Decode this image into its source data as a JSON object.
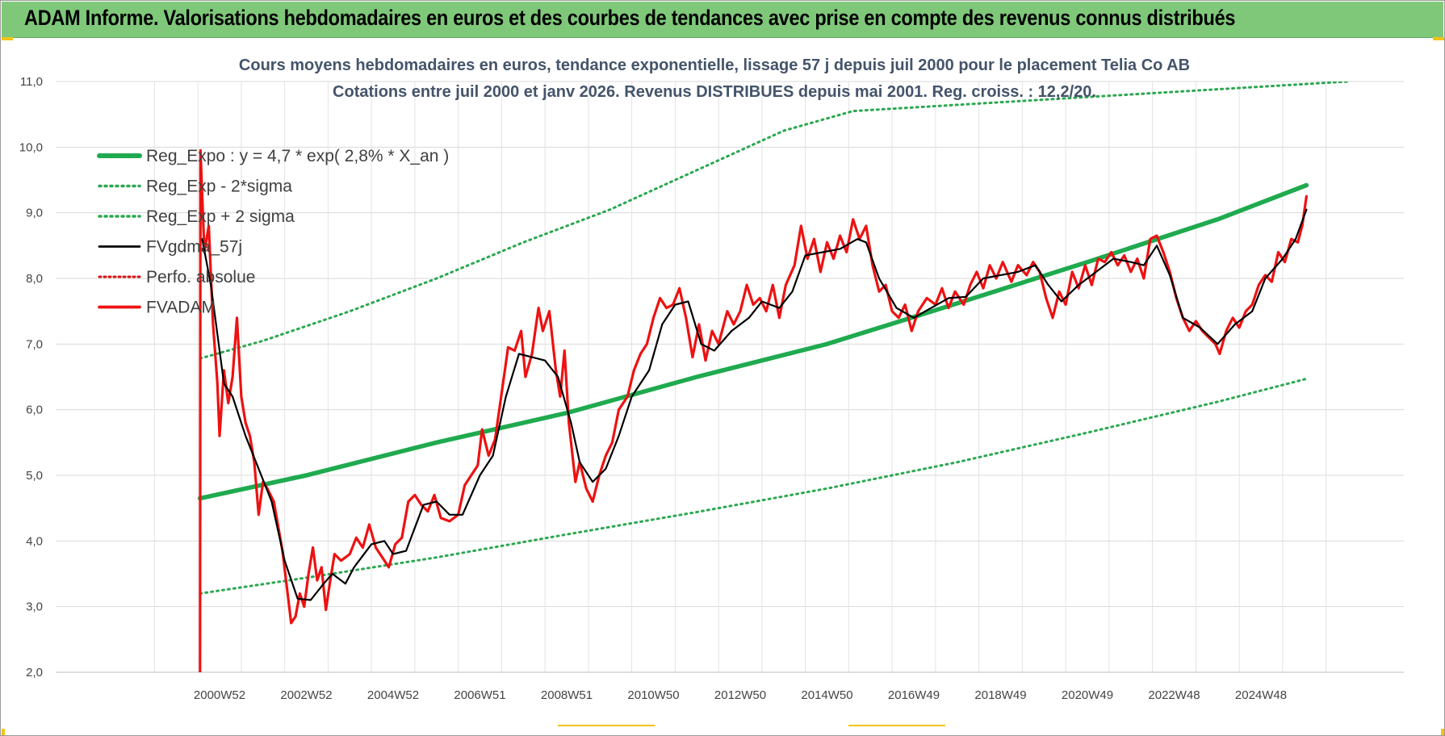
{
  "header": {
    "title": "ADAM Informe. Valorisations hebdomadaires en euros et des courbes de tendances avec prise en compte des revenus connus distribués"
  },
  "colors": {
    "banner": "#7fc87a",
    "reg_expo": "#1faa4f",
    "sigma": "#2aa84f",
    "fvgdma": "#000000",
    "fvadam": "#ee1111",
    "perfo": "#dd1111"
  },
  "chart_data": {
    "type": "line",
    "title": "Cours moyens hebdomadaires en euros, tendance exponentielle, lissage 57 j depuis juil 2000 pour le placement Telia Co AB",
    "subtitle": "Cotations entre juil 2000 et janv 2026. Revenus DISTRIBUES depuis mai 2001. Reg. croiss. : 12,2/20.",
    "ylim": [
      2.0,
      11.0
    ],
    "y_ticks": [
      "2,0",
      "3,0",
      "4,0",
      "5,0",
      "6,0",
      "7,0",
      "8,0",
      "9,0",
      "10,0",
      "11,0"
    ],
    "x_tick_labels": [
      "2000W52",
      "2002W52",
      "2004W52",
      "2006W51",
      "2008W51",
      "2010W50",
      "2012W50",
      "2014W50",
      "2016W49",
      "2018W49",
      "2020W49",
      "2022W48",
      "2024W48"
    ],
    "x_range_years": [
      2000.55,
      2026.05
    ],
    "grid": true,
    "legend_position": "top-left",
    "series": [
      {
        "name": "Reg_Expo : y = 4,7 * exp( 2,8% *  X_an )",
        "style": "solid-thick",
        "points": [
          [
            2000.55,
            4.65
          ],
          [
            2003.0,
            5.0
          ],
          [
            2006.0,
            5.5
          ],
          [
            2009.0,
            5.95
          ],
          [
            2012.0,
            6.5
          ],
          [
            2015.0,
            7.0
          ],
          [
            2018.0,
            7.62
          ],
          [
            2021.0,
            8.25
          ],
          [
            2024.0,
            8.9
          ],
          [
            2026.05,
            9.42
          ]
        ]
      },
      {
        "name": "Reg_Exp - 2*sigma",
        "style": "dotted",
        "points": [
          [
            2000.55,
            3.2
          ],
          [
            2003.0,
            3.44
          ],
          [
            2006.0,
            3.75
          ],
          [
            2009.0,
            4.1
          ],
          [
            2012.0,
            4.44
          ],
          [
            2015.0,
            4.8
          ],
          [
            2018.0,
            5.2
          ],
          [
            2021.0,
            5.65
          ],
          [
            2024.0,
            6.12
          ],
          [
            2026.05,
            6.47
          ]
        ]
      },
      {
        "name": "Reg_Exp + 2 sigma",
        "style": "dotted",
        "points": [
          [
            2000.55,
            6.78
          ],
          [
            2002.0,
            7.05
          ],
          [
            2004.0,
            7.5
          ],
          [
            2006.0,
            8.0
          ],
          [
            2008.0,
            8.55
          ],
          [
            2010.0,
            9.05
          ],
          [
            2012.0,
            9.65
          ],
          [
            2014.0,
            10.25
          ],
          [
            2015.6,
            10.55
          ],
          [
            2027.0,
            11.0
          ]
        ]
      },
      {
        "name": "FVgdma_57j",
        "style": "solid-thin",
        "points": [
          [
            2000.6,
            8.6
          ],
          [
            2000.8,
            7.9
          ],
          [
            2001.1,
            6.4
          ],
          [
            2001.3,
            6.2
          ],
          [
            2001.6,
            5.6
          ],
          [
            2001.9,
            5.1
          ],
          [
            2002.2,
            4.6
          ],
          [
            2002.5,
            3.7
          ],
          [
            2002.8,
            3.12
          ],
          [
            2003.1,
            3.1
          ],
          [
            2003.4,
            3.35
          ],
          [
            2003.6,
            3.5
          ],
          [
            2003.9,
            3.35
          ],
          [
            2004.1,
            3.6
          ],
          [
            2004.5,
            3.95
          ],
          [
            2004.8,
            4.0
          ],
          [
            2005.0,
            3.8
          ],
          [
            2005.3,
            3.85
          ],
          [
            2005.7,
            4.55
          ],
          [
            2006.0,
            4.6
          ],
          [
            2006.3,
            4.4
          ],
          [
            2006.6,
            4.4
          ],
          [
            2007.0,
            5.0
          ],
          [
            2007.3,
            5.3
          ],
          [
            2007.6,
            6.2
          ],
          [
            2007.9,
            6.85
          ],
          [
            2008.2,
            6.8
          ],
          [
            2008.5,
            6.75
          ],
          [
            2008.8,
            6.5
          ],
          [
            2009.1,
            5.8
          ],
          [
            2009.3,
            5.2
          ],
          [
            2009.6,
            4.9
          ],
          [
            2009.9,
            5.1
          ],
          [
            2010.2,
            5.6
          ],
          [
            2010.5,
            6.2
          ],
          [
            2010.9,
            6.6
          ],
          [
            2011.2,
            7.3
          ],
          [
            2011.5,
            7.6
          ],
          [
            2011.8,
            7.65
          ],
          [
            2012.1,
            7.0
          ],
          [
            2012.4,
            6.9
          ],
          [
            2012.8,
            7.2
          ],
          [
            2013.2,
            7.4
          ],
          [
            2013.5,
            7.65
          ],
          [
            2013.9,
            7.55
          ],
          [
            2014.2,
            7.8
          ],
          [
            2014.5,
            8.35
          ],
          [
            2014.9,
            8.4
          ],
          [
            2015.3,
            8.45
          ],
          [
            2015.7,
            8.6
          ],
          [
            2015.9,
            8.55
          ],
          [
            2016.2,
            8.0
          ],
          [
            2016.6,
            7.55
          ],
          [
            2017.0,
            7.4
          ],
          [
            2017.4,
            7.55
          ],
          [
            2017.8,
            7.7
          ],
          [
            2018.2,
            7.72
          ],
          [
            2018.6,
            8.0
          ],
          [
            2019.0,
            8.05
          ],
          [
            2019.4,
            8.1
          ],
          [
            2019.8,
            8.2
          ],
          [
            2020.1,
            7.9
          ],
          [
            2020.4,
            7.65
          ],
          [
            2020.8,
            7.9
          ],
          [
            2021.2,
            8.1
          ],
          [
            2021.6,
            8.3
          ],
          [
            2022.0,
            8.25
          ],
          [
            2022.3,
            8.2
          ],
          [
            2022.6,
            8.5
          ],
          [
            2022.9,
            8.05
          ],
          [
            2023.2,
            7.4
          ],
          [
            2023.6,
            7.25
          ],
          [
            2024.0,
            7.0
          ],
          [
            2024.4,
            7.3
          ],
          [
            2024.8,
            7.5
          ],
          [
            2025.1,
            8.0
          ],
          [
            2025.5,
            8.3
          ],
          [
            2025.8,
            8.6
          ],
          [
            2026.05,
            9.05
          ]
        ]
      },
      {
        "name": "Perfo. absolue",
        "style": "dotted-red",
        "points": []
      },
      {
        "name": "FVADAM",
        "style": "solid-red",
        "points": [
          [
            2000.55,
            2.0
          ],
          [
            2000.56,
            9.95
          ],
          [
            2000.65,
            8.4
          ],
          [
            2000.75,
            8.8
          ],
          [
            2000.85,
            7.3
          ],
          [
            2000.95,
            6.4
          ],
          [
            2001.0,
            5.6
          ],
          [
            2001.1,
            6.6
          ],
          [
            2001.2,
            6.1
          ],
          [
            2001.3,
            6.5
          ],
          [
            2001.4,
            7.4
          ],
          [
            2001.5,
            6.2
          ],
          [
            2001.6,
            5.8
          ],
          [
            2001.7,
            5.6
          ],
          [
            2001.8,
            5.2
          ],
          [
            2001.9,
            4.4
          ],
          [
            2002.0,
            4.9
          ],
          [
            2002.1,
            4.8
          ],
          [
            2002.25,
            4.6
          ],
          [
            2002.45,
            3.85
          ],
          [
            2002.55,
            3.3
          ],
          [
            2002.65,
            2.75
          ],
          [
            2002.75,
            2.85
          ],
          [
            2002.85,
            3.2
          ],
          [
            2002.95,
            3.0
          ],
          [
            2003.05,
            3.5
          ],
          [
            2003.15,
            3.9
          ],
          [
            2003.25,
            3.4
          ],
          [
            2003.35,
            3.6
          ],
          [
            2003.45,
            2.95
          ],
          [
            2003.55,
            3.4
          ],
          [
            2003.65,
            3.8
          ],
          [
            2003.8,
            3.7
          ],
          [
            2004.0,
            3.8
          ],
          [
            2004.15,
            4.05
          ],
          [
            2004.3,
            3.9
          ],
          [
            2004.45,
            4.25
          ],
          [
            2004.6,
            3.9
          ],
          [
            2004.75,
            3.75
          ],
          [
            2004.9,
            3.6
          ],
          [
            2005.05,
            3.95
          ],
          [
            2005.2,
            4.05
          ],
          [
            2005.35,
            4.6
          ],
          [
            2005.5,
            4.7
          ],
          [
            2005.65,
            4.55
          ],
          [
            2005.8,
            4.45
          ],
          [
            2005.95,
            4.7
          ],
          [
            2006.1,
            4.35
          ],
          [
            2006.3,
            4.3
          ],
          [
            2006.5,
            4.4
          ],
          [
            2006.65,
            4.85
          ],
          [
            2006.8,
            5.0
          ],
          [
            2006.95,
            5.15
          ],
          [
            2007.05,
            5.7
          ],
          [
            2007.2,
            5.3
          ],
          [
            2007.35,
            5.55
          ],
          [
            2007.5,
            6.25
          ],
          [
            2007.65,
            6.95
          ],
          [
            2007.8,
            6.9
          ],
          [
            2007.95,
            7.2
          ],
          [
            2008.05,
            6.5
          ],
          [
            2008.2,
            6.85
          ],
          [
            2008.35,
            7.55
          ],
          [
            2008.45,
            7.2
          ],
          [
            2008.6,
            7.5
          ],
          [
            2008.75,
            6.6
          ],
          [
            2008.85,
            6.2
          ],
          [
            2008.95,
            6.9
          ],
          [
            2009.05,
            5.8
          ],
          [
            2009.2,
            4.9
          ],
          [
            2009.3,
            5.2
          ],
          [
            2009.45,
            4.8
          ],
          [
            2009.6,
            4.6
          ],
          [
            2009.75,
            5.0
          ],
          [
            2009.9,
            5.3
          ],
          [
            2010.05,
            5.5
          ],
          [
            2010.2,
            6.0
          ],
          [
            2010.4,
            6.2
          ],
          [
            2010.55,
            6.6
          ],
          [
            2010.7,
            6.85
          ],
          [
            2010.85,
            7.0
          ],
          [
            2011.0,
            7.4
          ],
          [
            2011.15,
            7.7
          ],
          [
            2011.3,
            7.55
          ],
          [
            2011.45,
            7.6
          ],
          [
            2011.6,
            7.85
          ],
          [
            2011.75,
            7.4
          ],
          [
            2011.9,
            6.8
          ],
          [
            2012.05,
            7.3
          ],
          [
            2012.2,
            6.75
          ],
          [
            2012.35,
            7.2
          ],
          [
            2012.5,
            7.0
          ],
          [
            2012.7,
            7.5
          ],
          [
            2012.85,
            7.3
          ],
          [
            2013.0,
            7.5
          ],
          [
            2013.15,
            7.9
          ],
          [
            2013.3,
            7.6
          ],
          [
            2013.45,
            7.7
          ],
          [
            2013.6,
            7.5
          ],
          [
            2013.75,
            7.9
          ],
          [
            2013.9,
            7.4
          ],
          [
            2014.05,
            7.9
          ],
          [
            2014.25,
            8.2
          ],
          [
            2014.4,
            8.8
          ],
          [
            2014.55,
            8.3
          ],
          [
            2014.7,
            8.6
          ],
          [
            2014.85,
            8.1
          ],
          [
            2015.0,
            8.55
          ],
          [
            2015.15,
            8.3
          ],
          [
            2015.3,
            8.65
          ],
          [
            2015.45,
            8.4
          ],
          [
            2015.6,
            8.9
          ],
          [
            2015.75,
            8.6
          ],
          [
            2015.9,
            8.8
          ],
          [
            2016.05,
            8.2
          ],
          [
            2016.2,
            7.8
          ],
          [
            2016.35,
            7.9
          ],
          [
            2016.5,
            7.5
          ],
          [
            2016.65,
            7.4
          ],
          [
            2016.8,
            7.6
          ],
          [
            2016.95,
            7.2
          ],
          [
            2017.1,
            7.5
          ],
          [
            2017.3,
            7.7
          ],
          [
            2017.5,
            7.6
          ],
          [
            2017.65,
            7.85
          ],
          [
            2017.8,
            7.55
          ],
          [
            2017.95,
            7.8
          ],
          [
            2018.15,
            7.6
          ],
          [
            2018.3,
            7.9
          ],
          [
            2018.45,
            8.1
          ],
          [
            2018.6,
            7.85
          ],
          [
            2018.75,
            8.2
          ],
          [
            2018.9,
            8.0
          ],
          [
            2019.05,
            8.25
          ],
          [
            2019.25,
            7.95
          ],
          [
            2019.4,
            8.2
          ],
          [
            2019.6,
            8.05
          ],
          [
            2019.75,
            8.25
          ],
          [
            2019.9,
            8.1
          ],
          [
            2020.05,
            7.7
          ],
          [
            2020.2,
            7.4
          ],
          [
            2020.35,
            7.8
          ],
          [
            2020.5,
            7.6
          ],
          [
            2020.65,
            8.1
          ],
          [
            2020.8,
            7.85
          ],
          [
            2020.95,
            8.2
          ],
          [
            2021.1,
            7.9
          ],
          [
            2021.25,
            8.3
          ],
          [
            2021.4,
            8.25
          ],
          [
            2021.55,
            8.4
          ],
          [
            2021.7,
            8.2
          ],
          [
            2021.85,
            8.35
          ],
          [
            2022.0,
            8.1
          ],
          [
            2022.15,
            8.3
          ],
          [
            2022.3,
            8.0
          ],
          [
            2022.45,
            8.6
          ],
          [
            2022.6,
            8.65
          ],
          [
            2022.75,
            8.4
          ],
          [
            2022.9,
            8.1
          ],
          [
            2023.05,
            7.7
          ],
          [
            2023.2,
            7.4
          ],
          [
            2023.35,
            7.2
          ],
          [
            2023.5,
            7.35
          ],
          [
            2023.65,
            7.2
          ],
          [
            2023.8,
            7.1
          ],
          [
            2023.95,
            7.0
          ],
          [
            2024.05,
            6.85
          ],
          [
            2024.2,
            7.2
          ],
          [
            2024.35,
            7.4
          ],
          [
            2024.5,
            7.25
          ],
          [
            2024.65,
            7.5
          ],
          [
            2024.8,
            7.6
          ],
          [
            2024.95,
            7.9
          ],
          [
            2025.1,
            8.05
          ],
          [
            2025.25,
            7.95
          ],
          [
            2025.4,
            8.4
          ],
          [
            2025.55,
            8.25
          ],
          [
            2025.7,
            8.6
          ],
          [
            2025.85,
            8.55
          ],
          [
            2025.95,
            8.8
          ],
          [
            2026.05,
            9.25
          ]
        ]
      }
    ]
  }
}
